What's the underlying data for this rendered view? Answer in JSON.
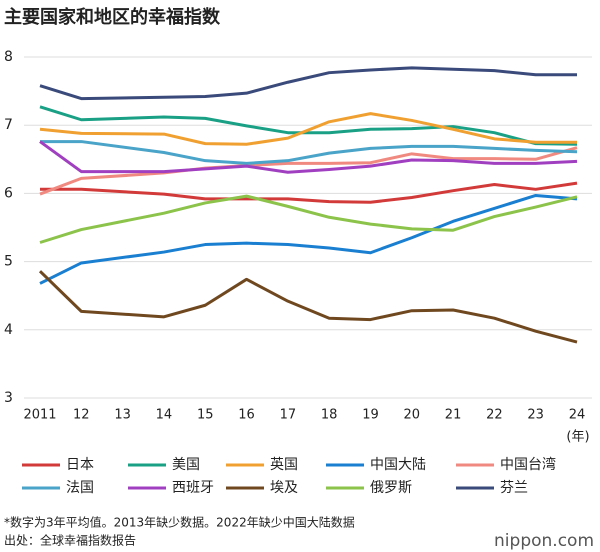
{
  "chart_data": {
    "type": "line",
    "title": "主要国家和地区的幸福指数",
    "x": [
      2011,
      2012,
      2014,
      2015,
      2016,
      2017,
      2018,
      2019,
      2020,
      2021,
      2022,
      2023,
      2024
    ],
    "xlabel": "(年)",
    "xlim": [
      2011,
      2024
    ],
    "xticks": [
      {
        "value": 2011,
        "label": "2011"
      },
      {
        "value": 2012,
        "label": "12"
      },
      {
        "value": 2013,
        "label": "13"
      },
      {
        "value": 2014,
        "label": "14"
      },
      {
        "value": 2015,
        "label": "15"
      },
      {
        "value": 2016,
        "label": "16"
      },
      {
        "value": 2017,
        "label": "17"
      },
      {
        "value": 2018,
        "label": "18"
      },
      {
        "value": 2019,
        "label": "19"
      },
      {
        "value": 2020,
        "label": "20"
      },
      {
        "value": 2021,
        "label": "21"
      },
      {
        "value": 2022,
        "label": "22"
      },
      {
        "value": 2023,
        "label": "23"
      },
      {
        "value": 2024,
        "label": "24"
      }
    ],
    "ylim": [
      3,
      8
    ],
    "yticks": [
      3,
      4,
      5,
      6,
      7,
      8
    ],
    "grid": true,
    "series": [
      {
        "name": "日本",
        "color": "#d23a3a",
        "values": [
          6.06,
          6.06,
          5.99,
          5.92,
          5.92,
          5.92,
          5.88,
          5.87,
          5.94,
          6.04,
          6.13,
          6.06,
          6.15
        ]
      },
      {
        "name": "美国",
        "color": "#1aa085",
        "values": [
          7.27,
          7.08,
          7.12,
          7.1,
          6.99,
          6.89,
          6.89,
          6.94,
          6.95,
          6.98,
          6.89,
          6.73,
          6.72
        ]
      },
      {
        "name": "英国",
        "color": "#f0a030",
        "values": [
          6.94,
          6.88,
          6.87,
          6.73,
          6.72,
          6.81,
          7.05,
          7.17,
          7.07,
          6.94,
          6.8,
          6.75,
          6.75
        ]
      },
      {
        "name": "中国大陆",
        "color": "#1a7fd0",
        "x": [
          2011,
          2012,
          2014,
          2015,
          2016,
          2017,
          2018,
          2019,
          2020,
          2021,
          2023,
          2024
        ],
        "values": [
          4.68,
          4.98,
          5.14,
          5.25,
          5.27,
          5.25,
          5.2,
          5.13,
          5.35,
          5.59,
          5.97,
          5.92
        ]
      },
      {
        "name": "中国台湾",
        "color": "#f08a80",
        "values": [
          5.99,
          6.22,
          6.3,
          6.37,
          6.41,
          6.44,
          6.44,
          6.45,
          6.58,
          6.51,
          6.51,
          6.5,
          6.67
        ]
      },
      {
        "name": "法国",
        "color": "#4aa3c8",
        "values": [
          6.76,
          6.76,
          6.6,
          6.48,
          6.44,
          6.48,
          6.59,
          6.66,
          6.69,
          6.69,
          6.66,
          6.63,
          6.61
        ]
      },
      {
        "name": "西班牙",
        "color": "#a040c0",
        "values": [
          6.76,
          6.32,
          6.32,
          6.36,
          6.4,
          6.31,
          6.35,
          6.4,
          6.49,
          6.48,
          6.44,
          6.44,
          6.47
        ]
      },
      {
        "name": "埃及",
        "color": "#704820",
        "values": [
          4.86,
          4.27,
          4.19,
          4.36,
          4.74,
          4.42,
          4.17,
          4.15,
          4.28,
          4.29,
          4.17,
          3.98,
          3.82
        ]
      },
      {
        "name": "俄罗斯",
        "color": "#8cc34a",
        "values": [
          5.28,
          5.47,
          5.71,
          5.86,
          5.96,
          5.81,
          5.65,
          5.55,
          5.48,
          5.46,
          5.66,
          5.8,
          5.95
        ]
      },
      {
        "name": "芬兰",
        "color": "#3a4a7a",
        "values": [
          7.58,
          7.39,
          7.41,
          7.42,
          7.47,
          7.63,
          7.77,
          7.81,
          7.84,
          7.82,
          7.8,
          7.74,
          7.74
        ]
      }
    ],
    "notes": [
      "*数字为3年平均值。2013年缺少数据。2022年缺少中国大陆数据",
      "出处：全球幸福指数报告"
    ],
    "logo": "nippon.com"
  }
}
